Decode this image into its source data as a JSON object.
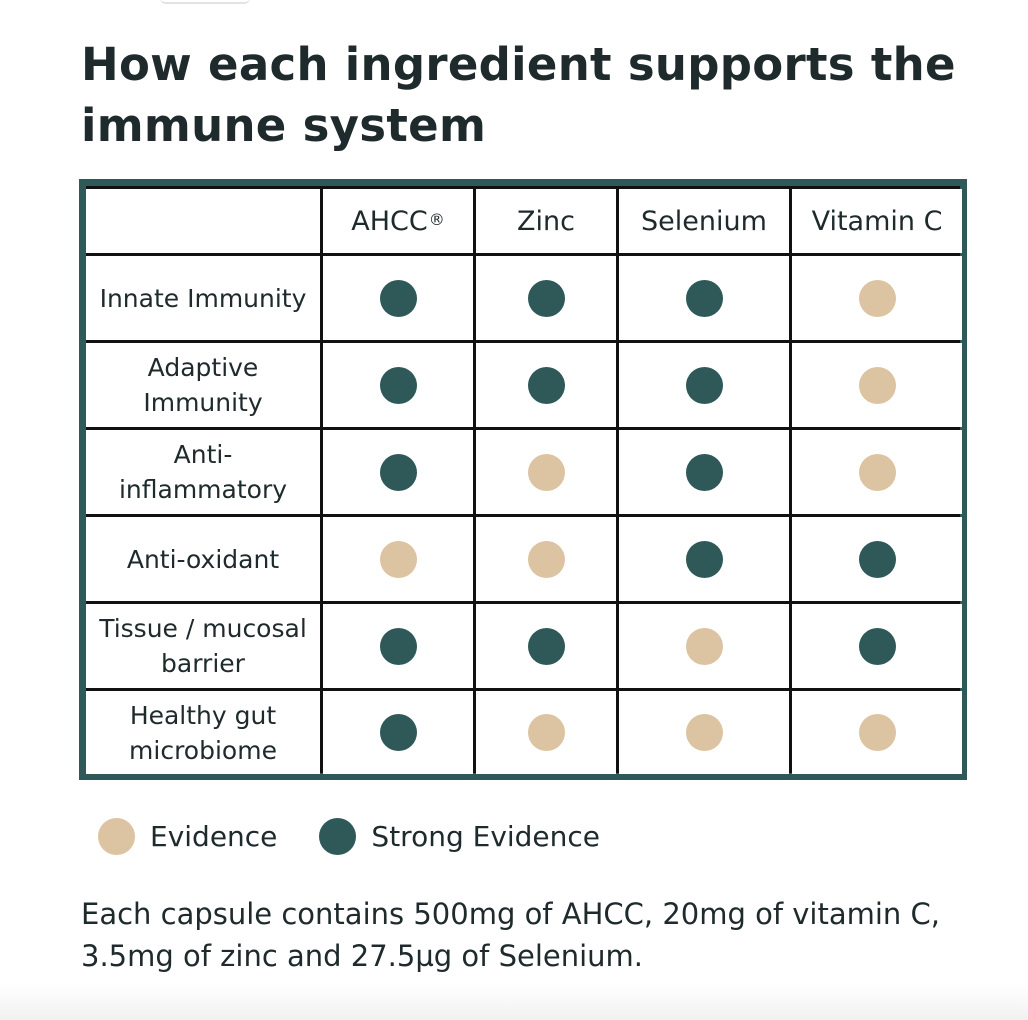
{
  "title": "How each ingredient supports the immune system",
  "colors": {
    "frame": "#2f5859",
    "strong": "#2f5859",
    "evidence": "#dcc3a1",
    "text": "#1f2a2c"
  },
  "table": {
    "columns": [
      {
        "label": "AHCC",
        "mark": "®"
      },
      {
        "label": "Zinc",
        "mark": ""
      },
      {
        "label": "Selenium",
        "mark": ""
      },
      {
        "label": "Vitamin C",
        "mark": ""
      }
    ],
    "rows": [
      {
        "label": "Innate Immunity",
        "cells": [
          "strong",
          "strong",
          "strong",
          "evidence"
        ]
      },
      {
        "label": "Adaptive Immunity",
        "cells": [
          "strong",
          "strong",
          "strong",
          "evidence"
        ]
      },
      {
        "label": "Anti-inflammatory",
        "cells": [
          "strong",
          "evidence",
          "strong",
          "evidence"
        ]
      },
      {
        "label": "Anti-oxidant",
        "cells": [
          "evidence",
          "evidence",
          "strong",
          "strong"
        ]
      },
      {
        "label": "Tissue / mucosal barrier",
        "cells": [
          "strong",
          "strong",
          "evidence",
          "strong"
        ]
      },
      {
        "label": "Healthy gut microbiome",
        "cells": [
          "strong",
          "evidence",
          "evidence",
          "evidence"
        ]
      }
    ]
  },
  "legend": {
    "evidence_label": "Evidence",
    "strong_label": "Strong Evidence"
  },
  "footnote": "Each capsule contains 500mg of AHCC, 20mg of vitamin C, 3.5mg of zinc and 27.5µg of Selenium."
}
